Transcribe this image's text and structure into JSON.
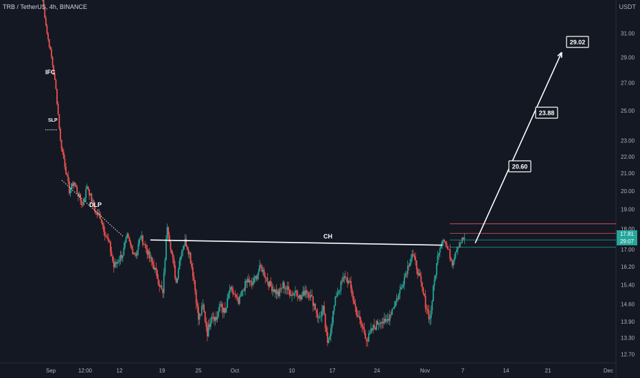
{
  "header": {
    "symbol": "TRB / TetherUS, 4h, BINANCE",
    "unit": "USDT"
  },
  "colors": {
    "bg": "#141823",
    "up": "#26a69a",
    "down": "#ef5350",
    "line": "#ffffff"
  },
  "chart_data": {
    "type": "candlestick",
    "y_scale": "log",
    "ylim": [
      12.4,
      34.0
    ],
    "y_ticks": [
      "31.00",
      "29.00",
      "27.00",
      "25.00",
      "23.00",
      "22.00",
      "21.00",
      "20.00",
      "19.00",
      "18.00",
      "17.00",
      "16.20",
      "15.40",
      "14.60",
      "13.90",
      "13.30",
      "12.70"
    ],
    "x_ticks": [
      "Sep",
      "12:00",
      "12",
      "19",
      "25",
      "Oct",
      "10",
      "17",
      "24",
      "Nov",
      "7",
      "14",
      "21",
      "Dec"
    ],
    "price_badges": [
      {
        "label": "17.81",
        "color": "#26a69a"
      },
      {
        "label": "29:07",
        "color": "#26a69a"
      }
    ],
    "annotations": [
      {
        "text": "IFC"
      },
      {
        "text": "SLP"
      },
      {
        "text": "DLP"
      },
      {
        "text": "CH"
      }
    ],
    "targets": [
      "20.60",
      "23.88",
      "29.02"
    ],
    "levels": [
      {
        "value": 18.25,
        "color": "#ef5350"
      },
      {
        "value": 17.78,
        "color": "#ef5350"
      },
      {
        "value": 17.45,
        "color": "#26a69a"
      },
      {
        "value": 17.1,
        "color": "#26a69a"
      }
    ],
    "ch_line": {
      "from": 17.45,
      "to": 17.2
    },
    "slp_level": 23.7,
    "dlp_line": {
      "from": 20.6,
      "to": 17.6
    },
    "projection": {
      "from": 17.3,
      "to": 29.4
    },
    "path": [
      [
        0,
        34
      ],
      [
        2,
        31
      ],
      [
        4,
        29
      ],
      [
        6,
        26.5
      ],
      [
        8,
        23
      ],
      [
        10,
        21.5
      ],
      [
        12,
        20
      ],
      [
        14,
        20.5
      ],
      [
        16,
        19.8
      ],
      [
        18,
        19.2
      ],
      [
        20,
        20.3
      ],
      [
        22,
        19.5
      ],
      [
        24,
        18.8
      ],
      [
        26,
        18.6
      ],
      [
        28,
        17.8
      ],
      [
        30,
        17.2
      ],
      [
        32,
        16.2
      ],
      [
        34,
        16.5
      ],
      [
        36,
        16.8
      ],
      [
        38,
        17.6
      ],
      [
        40,
        17.0
      ],
      [
        42,
        16.8
      ],
      [
        44,
        17.6
      ],
      [
        46,
        17.2
      ],
      [
        48,
        16.6
      ],
      [
        50,
        16.2
      ],
      [
        52,
        15.6
      ],
      [
        54,
        15.0
      ],
      [
        56,
        18.2
      ],
      [
        58,
        16.8
      ],
      [
        60,
        15.5
      ],
      [
        62,
        16.8
      ],
      [
        64,
        17.4
      ],
      [
        66,
        16.8
      ],
      [
        68,
        15.6
      ],
      [
        70,
        14.0
      ],
      [
        72,
        14.5
      ],
      [
        74,
        13.5
      ],
      [
        76,
        14.2
      ],
      [
        78,
        14.0
      ],
      [
        80,
        14.6
      ],
      [
        82,
        14.2
      ],
      [
        84,
        15.2
      ],
      [
        86,
        15.0
      ],
      [
        88,
        14.6
      ],
      [
        90,
        15.2
      ],
      [
        92,
        15.6
      ],
      [
        94,
        15.4
      ],
      [
        96,
        15.8
      ],
      [
        98,
        16.2
      ],
      [
        100,
        15.8
      ],
      [
        102,
        15.4
      ],
      [
        104,
        15.2
      ],
      [
        106,
        15.0
      ],
      [
        108,
        15.4
      ],
      [
        110,
        15.2
      ],
      [
        112,
        15.0
      ],
      [
        114,
        15.2
      ],
      [
        116,
        14.8
      ],
      [
        118,
        15.2
      ],
      [
        120,
        15.0
      ],
      [
        122,
        14.6
      ],
      [
        124,
        14.0
      ],
      [
        126,
        14.4
      ],
      [
        128,
        13.0
      ],
      [
        130,
        14.0
      ],
      [
        132,
        15.0
      ],
      [
        134,
        15.4
      ],
      [
        136,
        15.8
      ],
      [
        138,
        15.4
      ],
      [
        140,
        14.6
      ],
      [
        142,
        14.0
      ],
      [
        144,
        13.6
      ],
      [
        146,
        13.2
      ],
      [
        148,
        13.6
      ],
      [
        150,
        13.8
      ],
      [
        152,
        14.0
      ],
      [
        154,
        13.8
      ],
      [
        156,
        14.2
      ],
      [
        158,
        14.6
      ],
      [
        160,
        15.0
      ],
      [
        162,
        15.6
      ],
      [
        164,
        16.2
      ],
      [
        166,
        16.8
      ],
      [
        168,
        16.2
      ],
      [
        170,
        15.4
      ],
      [
        172,
        14.6
      ],
      [
        174,
        14.0
      ],
      [
        176,
        15.6
      ],
      [
        178,
        17.0
      ],
      [
        180,
        17.6
      ],
      [
        182,
        17.0
      ],
      [
        184,
        16.4
      ],
      [
        186,
        17.1
      ],
      [
        188,
        17.4
      ],
      [
        190,
        17.6
      ]
    ]
  }
}
